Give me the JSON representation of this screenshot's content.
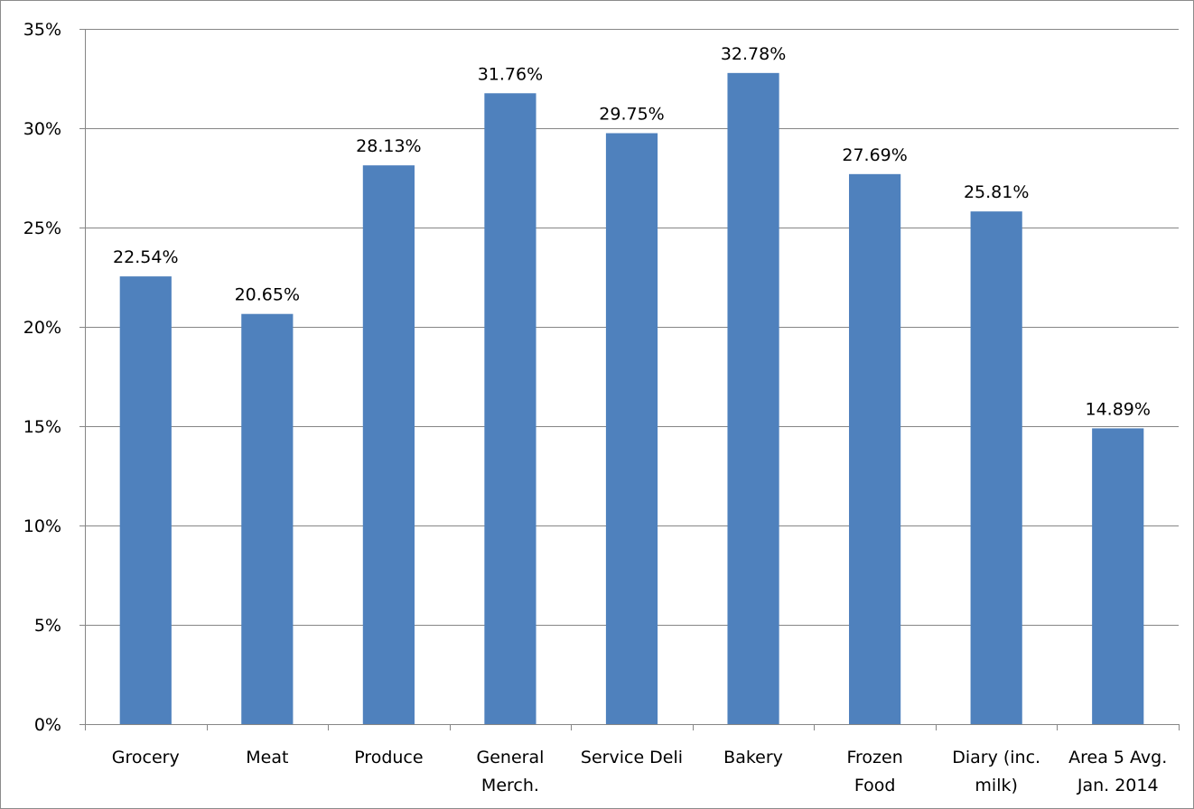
{
  "chart_data": {
    "type": "bar",
    "categories": [
      [
        "Grocery"
      ],
      [
        "Meat"
      ],
      [
        "Produce"
      ],
      [
        "General",
        "Merch."
      ],
      [
        "Service Deli"
      ],
      [
        "Bakery"
      ],
      [
        "Frozen",
        "Food"
      ],
      [
        "Diary (inc.",
        "milk)"
      ],
      [
        "Area 5 Avg.",
        "Jan. 2014"
      ]
    ],
    "values": [
      22.54,
      20.65,
      28.13,
      31.76,
      29.75,
      32.78,
      27.69,
      25.81,
      14.89
    ],
    "data_labels": [
      "22.54%",
      "20.65%",
      "28.13%",
      "31.76%",
      "29.75%",
      "32.78%",
      "27.69%",
      "25.81%",
      "14.89%"
    ],
    "y_ticks": [
      0,
      5,
      10,
      15,
      20,
      25,
      30,
      35
    ],
    "y_tick_labels": [
      "0%",
      "5%",
      "10%",
      "15%",
      "20%",
      "25%",
      "30%",
      "35%"
    ],
    "ylim": [
      0,
      35
    ],
    "title": "",
    "xlabel": "",
    "ylabel": "",
    "grid": true,
    "legend": "none",
    "colors": {
      "bar": "#4f81bd",
      "grid": "#868686",
      "axis": "#868686",
      "text": "#000000"
    }
  }
}
